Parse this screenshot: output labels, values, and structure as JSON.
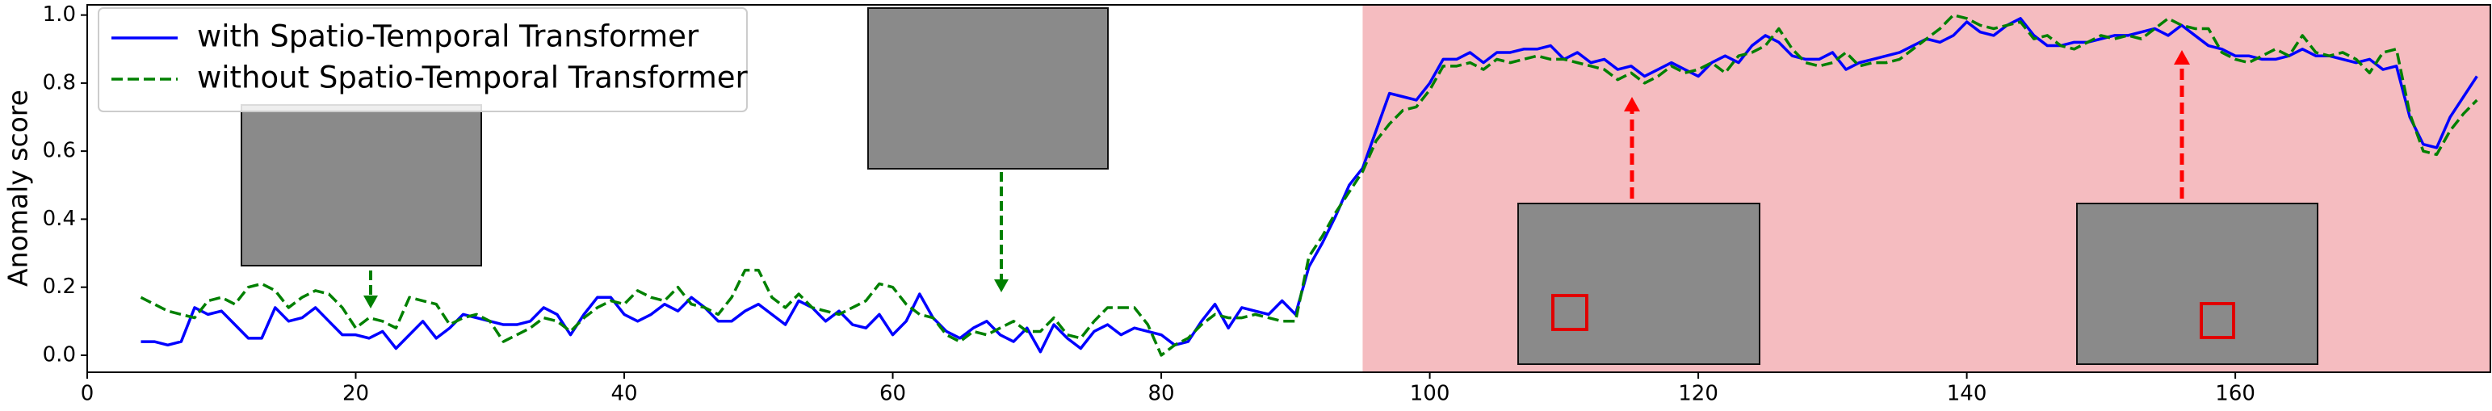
{
  "chart_data": {
    "type": "line",
    "y_label": "Anomaly score",
    "xlim": [
      0,
      179
    ],
    "ylim": [
      -0.05,
      1.03
    ],
    "xticks": [
      0,
      20,
      40,
      60,
      80,
      100,
      120,
      140,
      160
    ],
    "yticks": [
      {
        "value": 0,
        "label": "0.0"
      },
      0.2,
      0.4,
      0.6,
      0.8,
      {
        "value": 1,
        "label": "1.0"
      }
    ],
    "grid": false,
    "legend": "upper left",
    "shaded_xrange": [
      95,
      179
    ],
    "shaded_color": "#f5bcc0",
    "x": [
      4,
      5,
      6,
      7,
      8,
      9,
      10,
      11,
      12,
      13,
      14,
      15,
      16,
      17,
      18,
      19,
      20,
      21,
      22,
      23,
      24,
      25,
      26,
      27,
      28,
      29,
      30,
      31,
      32,
      33,
      34,
      35,
      36,
      37,
      38,
      39,
      40,
      41,
      42,
      43,
      44,
      45,
      46,
      47,
      48,
      49,
      50,
      51,
      52,
      53,
      54,
      55,
      56,
      57,
      58,
      59,
      60,
      61,
      62,
      63,
      64,
      65,
      66,
      67,
      68,
      69,
      70,
      71,
      72,
      73,
      74,
      75,
      76,
      77,
      78,
      79,
      80,
      81,
      82,
      83,
      84,
      85,
      86,
      87,
      88,
      89,
      90,
      91,
      92,
      93,
      94,
      95,
      96,
      97,
      98,
      99,
      100,
      101,
      102,
      103,
      104,
      105,
      106,
      107,
      108,
      109,
      110,
      111,
      112,
      113,
      114,
      115,
      116,
      117,
      118,
      119,
      120,
      121,
      122,
      123,
      124,
      125,
      126,
      127,
      128,
      129,
      130,
      131,
      132,
      133,
      134,
      135,
      136,
      137,
      138,
      139,
      140,
      141,
      142,
      143,
      144,
      145,
      146,
      147,
      148,
      149,
      150,
      151,
      152,
      153,
      154,
      155,
      156,
      157,
      158,
      159,
      160,
      161,
      162,
      163,
      164,
      165,
      166,
      167,
      168,
      169,
      170,
      171,
      172,
      173,
      174,
      175,
      176,
      177,
      178
    ],
    "series": [
      {
        "name": "with Spatio-Temporal Transformer",
        "color": "#0000ff",
        "dash": "solid",
        "values": [
          0.04,
          0.04,
          0.03,
          0.04,
          0.14,
          0.12,
          0.13,
          0.09,
          0.05,
          0.05,
          0.14,
          0.1,
          0.11,
          0.14,
          0.1,
          0.06,
          0.06,
          0.05,
          0.07,
          0.02,
          0.06,
          0.1,
          0.05,
          0.08,
          0.12,
          0.11,
          0.1,
          0.09,
          0.09,
          0.1,
          0.14,
          0.12,
          0.06,
          0.12,
          0.17,
          0.17,
          0.12,
          0.1,
          0.12,
          0.15,
          0.13,
          0.17,
          0.14,
          0.1,
          0.1,
          0.13,
          0.15,
          0.12,
          0.09,
          0.16,
          0.14,
          0.1,
          0.13,
          0.09,
          0.08,
          0.12,
          0.06,
          0.1,
          0.18,
          0.11,
          0.07,
          0.05,
          0.08,
          0.1,
          0.06,
          0.04,
          0.08,
          0.01,
          0.09,
          0.05,
          0.02,
          0.07,
          0.09,
          0.06,
          0.08,
          0.07,
          0.06,
          0.03,
          0.04,
          0.1,
          0.15,
          0.08,
          0.14,
          0.13,
          0.12,
          0.16,
          0.12,
          0.26,
          0.33,
          0.41,
          0.5,
          0.55,
          0.66,
          0.77,
          0.76,
          0.75,
          0.8,
          0.87,
          0.87,
          0.89,
          0.86,
          0.89,
          0.89,
          0.9,
          0.9,
          0.91,
          0.87,
          0.89,
          0.86,
          0.87,
          0.84,
          0.85,
          0.82,
          0.84,
          0.86,
          0.84,
          0.82,
          0.86,
          0.88,
          0.86,
          0.91,
          0.94,
          0.92,
          0.88,
          0.87,
          0.87,
          0.89,
          0.84,
          0.86,
          0.87,
          0.88,
          0.89,
          0.91,
          0.93,
          0.92,
          0.94,
          0.98,
          0.95,
          0.94,
          0.97,
          0.99,
          0.94,
          0.91,
          0.91,
          0.92,
          0.92,
          0.93,
          0.94,
          0.94,
          0.95,
          0.96,
          0.94,
          0.97,
          0.94,
          0.91,
          0.9,
          0.88,
          0.88,
          0.87,
          0.87,
          0.88,
          0.9,
          0.88,
          0.88,
          0.87,
          0.86,
          0.87,
          0.84,
          0.85,
          0.7,
          0.62,
          0.61,
          0.7,
          0.76,
          0.82
        ]
      },
      {
        "name": "without Spatio-Temporal Transformer",
        "color": "#008000",
        "dash": "dashed",
        "values": [
          0.17,
          0.15,
          0.13,
          0.12,
          0.11,
          0.16,
          0.17,
          0.15,
          0.2,
          0.21,
          0.19,
          0.14,
          0.17,
          0.19,
          0.18,
          0.14,
          0.08,
          0.11,
          0.1,
          0.08,
          0.17,
          0.16,
          0.15,
          0.09,
          0.11,
          0.12,
          0.1,
          0.04,
          0.06,
          0.08,
          0.11,
          0.1,
          0.07,
          0.11,
          0.14,
          0.16,
          0.15,
          0.19,
          0.17,
          0.16,
          0.2,
          0.15,
          0.14,
          0.12,
          0.17,
          0.25,
          0.25,
          0.17,
          0.14,
          0.18,
          0.14,
          0.13,
          0.12,
          0.14,
          0.16,
          0.21,
          0.2,
          0.15,
          0.12,
          0.11,
          0.06,
          0.04,
          0.07,
          0.06,
          0.08,
          0.1,
          0.07,
          0.07,
          0.11,
          0.06,
          0.05,
          0.1,
          0.14,
          0.14,
          0.14,
          0.09,
          0.0,
          0.03,
          0.05,
          0.09,
          0.12,
          0.11,
          0.11,
          0.12,
          0.11,
          0.1,
          0.1,
          0.29,
          0.35,
          0.42,
          0.48,
          0.54,
          0.63,
          0.68,
          0.72,
          0.73,
          0.78,
          0.85,
          0.85,
          0.86,
          0.84,
          0.87,
          0.86,
          0.87,
          0.88,
          0.87,
          0.87,
          0.86,
          0.85,
          0.84,
          0.81,
          0.83,
          0.8,
          0.82,
          0.85,
          0.83,
          0.84,
          0.86,
          0.83,
          0.88,
          0.89,
          0.91,
          0.96,
          0.9,
          0.86,
          0.85,
          0.86,
          0.89,
          0.85,
          0.86,
          0.86,
          0.87,
          0.9,
          0.93,
          0.96,
          1.0,
          0.99,
          0.97,
          0.96,
          0.97,
          0.98,
          0.93,
          0.94,
          0.91,
          0.9,
          0.92,
          0.94,
          0.93,
          0.94,
          0.93,
          0.96,
          0.99,
          0.97,
          0.96,
          0.96,
          0.89,
          0.87,
          0.86,
          0.88,
          0.9,
          0.88,
          0.94,
          0.89,
          0.88,
          0.89,
          0.87,
          0.83,
          0.89,
          0.9,
          0.71,
          0.6,
          0.59,
          0.66,
          0.71,
          0.75
        ]
      }
    ]
  }
}
